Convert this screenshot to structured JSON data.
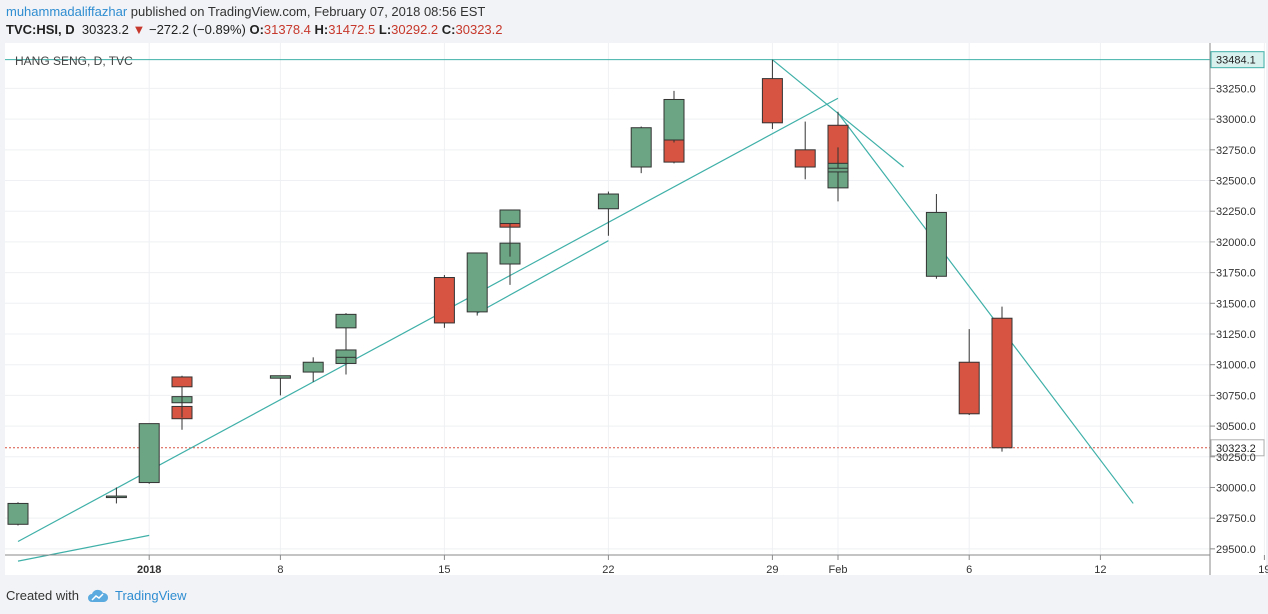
{
  "header": {
    "author": "muhammadaliffazhar",
    "published": "published on TradingView.com, February 07, 2018 08:56 EST"
  },
  "ohlc": {
    "symbol": "TVC:HSI, D",
    "last": "30323.2",
    "change": "−272.2 (−0.89%)",
    "o_label": "O:",
    "o": "31378.4",
    "h_label": "H:",
    "h": "31472.5",
    "l_label": "L:",
    "l": "30292.2",
    "c_label": "C:",
    "c": "30323.2"
  },
  "footer": {
    "created_with": "Created with",
    "brand": "TradingView"
  },
  "colors": {
    "up": "#6ba583",
    "down": "#d75442",
    "trendline": "#3fb0a8",
    "axis_text": "#333333"
  },
  "chart_data": {
    "type": "candlestick",
    "title": "HANG SENG, D, TVC",
    "ylim": [
      29450,
      33620
    ],
    "yticks": [
      29500,
      29750,
      30000,
      30250,
      30500,
      30750,
      31000,
      31250,
      31500,
      31750,
      32000,
      32250,
      32500,
      32750,
      33000,
      33250
    ],
    "price_labels": [
      {
        "value": 33484.1,
        "text": "33484.1",
        "style": "line"
      },
      {
        "value": 30323.2,
        "text": "30323.2",
        "style": "last"
      }
    ],
    "xticks": [
      {
        "date": "2018-01-02",
        "label": "2018",
        "bold": true
      },
      {
        "date": "2018-01-08",
        "label": "8"
      },
      {
        "date": "2018-01-15",
        "label": "15"
      },
      {
        "date": "2018-01-22",
        "label": "22"
      },
      {
        "date": "2018-01-29",
        "label": "29"
      },
      {
        "date": "2018-02-02",
        "label": "Feb"
      },
      {
        "date": "2018-02-06",
        "label": "6"
      },
      {
        "date": "2018-02-12",
        "label": "12"
      },
      {
        "date": "2018-02-19",
        "label": "19"
      }
    ],
    "candles": [
      {
        "date": "2017-12-29",
        "o": 29700,
        "h": 29880,
        "l": 29690,
        "c": 29870
      },
      {
        "date": "2018-01-01",
        "o": 29920,
        "h": 30000,
        "l": 29870,
        "c": 29930
      },
      {
        "date": "2018-01-02",
        "o": 30040,
        "h": 30520,
        "l": 30030,
        "c": 30520
      },
      {
        "date": "2018-01-03",
        "o": 30660,
        "h": 30730,
        "l": 30470,
        "c": 30560
      },
      {
        "date": "2018-01-04",
        "o": 30690,
        "h": 30810,
        "l": 30570,
        "c": 30740
      },
      {
        "date": "2018-01-05",
        "o": 30900,
        "h": 30910,
        "l": 30640,
        "c": 30820
      },
      {
        "date": "2018-01-08",
        "o": 30890,
        "h": 30910,
        "l": 30750,
        "c": 30910
      },
      {
        "date": "2018-01-09",
        "o": 30940,
        "h": 31060,
        "l": 30860,
        "c": 31020
      },
      {
        "date": "2018-01-10",
        "o": 31010,
        "h": 31270,
        "l": 30920,
        "c": 31080
      },
      {
        "date": "2018-01-11",
        "o": 31060,
        "h": 31130,
        "l": 30950,
        "c": 31120
      },
      {
        "date": "2018-01-12",
        "o": 31300,
        "h": 31420,
        "l": 31210,
        "c": 31410
      },
      {
        "date": "2018-01-15",
        "o": 31710,
        "h": 31730,
        "l": 31300,
        "c": 31340
      },
      {
        "date": "2018-01-16",
        "o": 31430,
        "h": 31910,
        "l": 31400,
        "c": 31910
      },
      {
        "date": "2018-01-17",
        "o": 31820,
        "h": 31990,
        "l": 31650,
        "c": 31990
      },
      {
        "date": "2018-01-18",
        "o": 32150,
        "h": 32240,
        "l": 31880,
        "c": 32120
      },
      {
        "date": "2018-01-19",
        "o": 32150,
        "h": 32260,
        "l": 31990,
        "c": 32260
      },
      {
        "date": "2018-01-22",
        "o": 32270,
        "h": 32410,
        "l": 32050,
        "c": 32390
      },
      {
        "date": "2018-01-23",
        "o": 32610,
        "h": 32940,
        "l": 32560,
        "c": 32930
      },
      {
        "date": "2018-01-24",
        "o": 32920,
        "h": 33020,
        "l": 32730,
        "c": 32960
      },
      {
        "date": "2018-01-25",
        "o": 32980,
        "h": 33000,
        "l": 32640,
        "c": 32650
      },
      {
        "date": "2018-01-26",
        "o": 32830,
        "h": 33230,
        "l": 32810,
        "c": 33160
      },
      {
        "date": "2018-01-29",
        "o": 33330,
        "h": 33484,
        "l": 32920,
        "c": 32970
      },
      {
        "date": "2018-01-30",
        "o": 32750,
        "h": 32980,
        "l": 32510,
        "c": 32610
      },
      {
        "date": "2018-01-31",
        "o": 32440,
        "h": 32930,
        "l": 32340,
        "c": 32890
      },
      {
        "date": "2018-02-01",
        "o": 32950,
        "h": 33060,
        "l": 32640,
        "c": 32640
      },
      {
        "date": "2018-02-02",
        "o": 32570,
        "h": 32770,
        "l": 32330,
        "c": 32600
      },
      {
        "date": "2018-02-05",
        "o": 31720,
        "h": 32390,
        "l": 31700,
        "c": 32240
      },
      {
        "date": "2018-02-06",
        "o": 31020,
        "h": 31290,
        "l": 30590,
        "c": 30600
      },
      {
        "date": "2018-02-07",
        "o": 31378.4,
        "h": 31472.5,
        "l": 30292.2,
        "c": 30323.2
      }
    ],
    "trendlines": [
      {
        "from": {
          "date": "2017-12-29",
          "value": 29560
        },
        "to": {
          "date": "2018-01-31",
          "value": 33170
        }
      },
      {
        "from": {
          "date": "2017-12-29",
          "value": 29400
        },
        "to": {
          "date": "2018-01-02",
          "value": 29610
        }
      },
      {
        "from": {
          "date": "2018-01-16",
          "value": 31420
        },
        "to": {
          "date": "2018-01-22",
          "value": 32010
        }
      },
      {
        "from": {
          "date": "2018-01-29",
          "value": 33484
        },
        "to": {
          "date": "2018-02-04",
          "value": 32610
        }
      },
      {
        "from": {
          "date": "2018-02-01",
          "value": 33050
        },
        "to": {
          "date": "2018-02-13",
          "value": 29870
        }
      }
    ]
  }
}
